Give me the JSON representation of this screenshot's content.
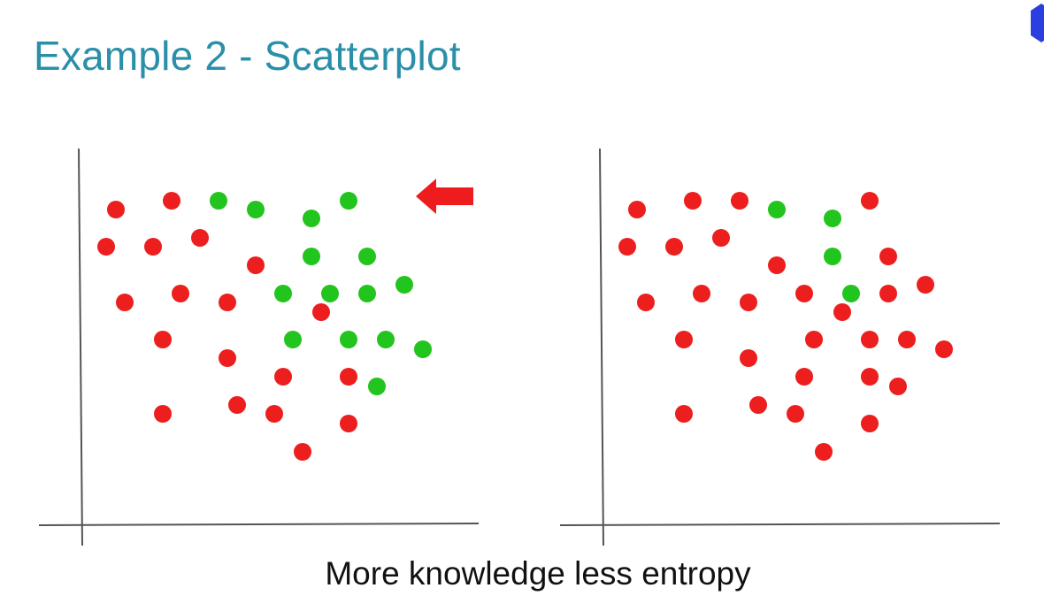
{
  "slide": {
    "title": "Example 2 - Scatterplot",
    "caption": "More knowledge less entropy"
  },
  "colors": {
    "title": "#2a8fa8",
    "red_point": "#ec1e1e",
    "green_point": "#22c41e",
    "arrow": "#ee1c1c",
    "axis": "#555555",
    "corner_mark": "#2b3fe0"
  },
  "icons": {
    "indicator_arrow": "left-arrow-icon"
  },
  "chart_data": [
    {
      "type": "scatter",
      "title": "",
      "xlabel": "",
      "ylabel": "",
      "grid": false,
      "annotation": "left-pointing red arrow at top-right",
      "xlim": [
        0,
        440
      ],
      "ylim": [
        0,
        400
      ],
      "series": [
        {
          "color": "red",
          "x": [
            40,
            103,
            29,
            82,
            135,
            198,
            50,
            113,
            166,
            272,
            93,
            166,
            229,
            303,
            93,
            177,
            219,
            251,
            303
          ],
          "y": [
            356,
            366,
            314,
            314,
            324,
            293,
            251,
            261,
            251,
            240,
            209,
            188,
            167,
            167,
            125,
            135,
            125,
            82,
            114
          ]
        },
        {
          "color": "green",
          "x": [
            156,
            198,
            261,
            303,
            261,
            324,
            229,
            282,
            324,
            366,
            240,
            303,
            345,
            387,
            335
          ],
          "y": [
            366,
            356,
            346,
            366,
            303,
            303,
            261,
            261,
            261,
            271,
            209,
            209,
            209,
            198,
            156
          ]
        }
      ]
    },
    {
      "type": "scatter",
      "title": "",
      "xlabel": "",
      "ylabel": "",
      "grid": false,
      "xlim": [
        0,
        440
      ],
      "ylim": [
        0,
        400
      ],
      "series": [
        {
          "color": "red",
          "x": [
            40,
            103,
            156,
            303,
            29,
            82,
            135,
            198,
            324,
            50,
            113,
            166,
            229,
            324,
            366,
            272,
            93,
            240,
            303,
            345,
            387,
            166,
            229,
            303,
            335,
            93,
            177,
            219,
            251,
            303
          ],
          "y": [
            356,
            366,
            366,
            366,
            314,
            314,
            324,
            293,
            303,
            251,
            261,
            251,
            261,
            261,
            271,
            240,
            209,
            209,
            209,
            209,
            198,
            188,
            167,
            167,
            156,
            125,
            135,
            125,
            82,
            114
          ]
        },
        {
          "color": "green",
          "x": [
            198,
            261,
            261,
            282
          ],
          "y": [
            356,
            346,
            303,
            261
          ]
        }
      ]
    }
  ]
}
